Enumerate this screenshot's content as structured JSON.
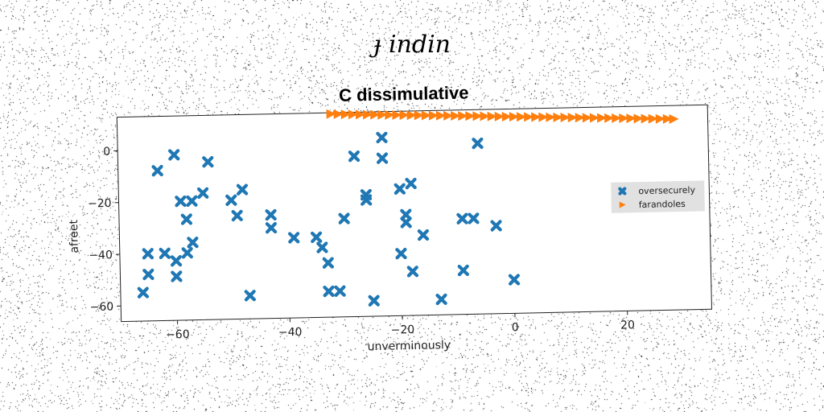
{
  "suptitle": "ɟ indin",
  "chart_data": {
    "type": "scatter",
    "title": "C dissimulative",
    "xlabel": "unverminously",
    "ylabel": "afreet",
    "xlim": [
      -70,
      35
    ],
    "ylim": [
      -66,
      13
    ],
    "xticks": [
      -60,
      -40,
      -20,
      0,
      20
    ],
    "yticks": [
      0,
      -20,
      -40,
      -60
    ],
    "grid": false,
    "legend_position": "center-right",
    "series": [
      {
        "name": "oversecurely",
        "marker": "x",
        "color": "#1f77b4",
        "points": [
          [
            -60,
            -2
          ],
          [
            -63,
            -8
          ],
          [
            -57,
            -20
          ],
          [
            -54,
            -5
          ],
          [
            -55,
            -17
          ],
          [
            -59,
            -20
          ],
          [
            -58,
            -27
          ],
          [
            -65,
            -40
          ],
          [
            -62,
            -40
          ],
          [
            -60,
            -43
          ],
          [
            -58,
            -40
          ],
          [
            -57,
            -36
          ],
          [
            -60,
            -49
          ],
          [
            -65,
            -48
          ],
          [
            -66,
            -55
          ],
          [
            -50,
            -20
          ],
          [
            -48,
            -16
          ],
          [
            -49,
            -26
          ],
          [
            -47,
            -57
          ],
          [
            -43,
            -26
          ],
          [
            -43,
            -31
          ],
          [
            -39,
            -35
          ],
          [
            -35,
            -35
          ],
          [
            -34,
            -39
          ],
          [
            -33,
            -45
          ],
          [
            -33,
            -56
          ],
          [
            -31,
            -56
          ],
          [
            -30,
            -28
          ],
          [
            -28,
            -4
          ],
          [
            -26,
            -19
          ],
          [
            -26,
            -21
          ],
          [
            -25,
            -60
          ],
          [
            -23,
            3
          ],
          [
            -23,
            -5
          ],
          [
            -20,
            -17
          ],
          [
            -18,
            -15
          ],
          [
            -19,
            -27
          ],
          [
            -19,
            -30
          ],
          [
            -20,
            -42
          ],
          [
            -18,
            -49
          ],
          [
            -16,
            -35
          ],
          [
            -13,
            -60
          ],
          [
            -9,
            -29
          ],
          [
            -9,
            -49
          ],
          [
            -7,
            -29
          ],
          [
            -6,
            0
          ],
          [
            -3,
            -32
          ],
          [
            0,
            -53
          ]
        ]
      },
      {
        "name": "farandoles",
        "marker": "triangle-right",
        "color": "#ff7f0e",
        "points": [
          [
            -31.9,
            12.5
          ],
          [
            -30.6,
            12.4
          ],
          [
            -29.3,
            12.3
          ],
          [
            -28.0,
            12.2
          ],
          [
            -26.7,
            12.1
          ],
          [
            -25.4,
            12.0
          ],
          [
            -24.1,
            11.9
          ],
          [
            -22.8,
            11.8
          ],
          [
            -21.5,
            11.7
          ],
          [
            -20.2,
            11.6
          ],
          [
            -18.9,
            11.5
          ],
          [
            -17.6,
            11.4
          ],
          [
            -16.3,
            11.3
          ],
          [
            -15.0,
            11.2
          ],
          [
            -13.7,
            11.1
          ],
          [
            -12.4,
            11.0
          ],
          [
            -11.1,
            10.9
          ],
          [
            -9.8,
            10.8
          ],
          [
            -8.5,
            10.7
          ],
          [
            -7.2,
            10.6
          ],
          [
            -5.9,
            10.5
          ],
          [
            -4.6,
            10.4
          ],
          [
            -3.3,
            10.3
          ],
          [
            -2.0,
            10.2
          ],
          [
            -0.7,
            10.1
          ],
          [
            0.6,
            10.0
          ],
          [
            1.9,
            9.9
          ],
          [
            3.2,
            9.8
          ],
          [
            4.5,
            9.7
          ],
          [
            5.8,
            9.6
          ],
          [
            7.1,
            9.5
          ],
          [
            8.4,
            9.4
          ],
          [
            9.7,
            9.3
          ],
          [
            11.0,
            9.2
          ],
          [
            12.3,
            9.1
          ],
          [
            13.6,
            9.0
          ],
          [
            14.9,
            8.9
          ],
          [
            16.2,
            8.8
          ],
          [
            17.5,
            8.7
          ],
          [
            18.8,
            8.6
          ],
          [
            20.1,
            8.5
          ],
          [
            21.4,
            8.4
          ],
          [
            22.7,
            8.3
          ],
          [
            24.0,
            8.2
          ],
          [
            25.3,
            8.1
          ],
          [
            26.6,
            8.0
          ],
          [
            27.9,
            7.9
          ],
          [
            29.0,
            7.8
          ]
        ]
      }
    ]
  }
}
